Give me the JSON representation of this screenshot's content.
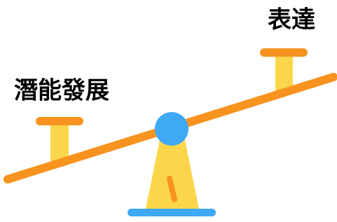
{
  "labels": {
    "left": "潛能發展",
    "right": "表達"
  }
}
